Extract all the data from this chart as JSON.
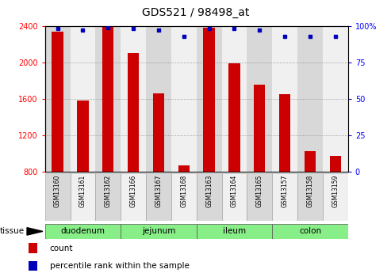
{
  "title": "GDS521 / 98498_at",
  "samples": [
    "GSM13160",
    "GSM13161",
    "GSM13162",
    "GSM13166",
    "GSM13167",
    "GSM13168",
    "GSM13163",
    "GSM13164",
    "GSM13165",
    "GSM13157",
    "GSM13158",
    "GSM13159"
  ],
  "bar_values": [
    2340,
    1580,
    2390,
    2100,
    1660,
    870,
    2380,
    1990,
    1760,
    1650,
    1030,
    980
  ],
  "percentile_values": [
    98,
    97,
    99,
    98,
    97,
    93,
    98,
    98,
    97,
    93,
    93,
    93
  ],
  "ylim_left": [
    800,
    2400
  ],
  "ylim_right": [
    0,
    100
  ],
  "yticks_left": [
    800,
    1200,
    1600,
    2000,
    2400
  ],
  "yticks_right": [
    0,
    25,
    50,
    75,
    100
  ],
  "ytick_right_labels": [
    "0",
    "25",
    "50",
    "75",
    "100%"
  ],
  "bar_color": "#cc0000",
  "dot_color": "#0000bb",
  "bar_baseline": 800,
  "tissue_groups": [
    {
      "label": "duodenum",
      "start": 0,
      "end": 3
    },
    {
      "label": "jejunum",
      "start": 3,
      "end": 6
    },
    {
      "label": "ileum",
      "start": 6,
      "end": 9
    },
    {
      "label": "colon",
      "start": 9,
      "end": 12
    }
  ],
  "tissue_color_light": "#bbffbb",
  "tissue_color_dark": "#88ee88",
  "col_bg_even": "#d8d8d8",
  "col_bg_odd": "#f0f0f0",
  "grid_color": "#888888",
  "grid_lines": [
    1200,
    1600,
    2000
  ]
}
